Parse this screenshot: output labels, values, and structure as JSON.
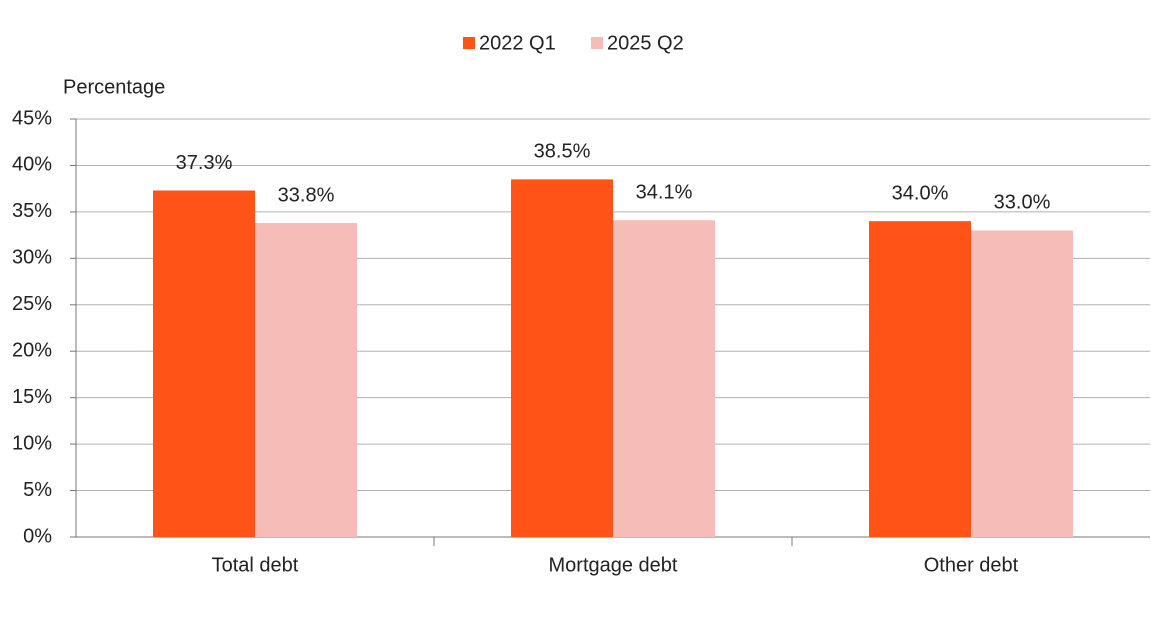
{
  "chart_data": {
    "type": "bar",
    "y_label": "Percentage",
    "categories": [
      "Total debt",
      "Mortgage debt",
      "Other debt"
    ],
    "series": [
      {
        "name": "2022 Q1",
        "color": "#ff5317",
        "values": [
          37.3,
          38.5,
          34.0
        ],
        "value_labels": [
          "37.3%",
          "38.5%",
          "34.0%"
        ]
      },
      {
        "name": "2025 Q2",
        "color": "#f6bcb8",
        "values": [
          33.8,
          34.1,
          33.0
        ],
        "value_labels": [
          "33.8%",
          "34.1%",
          "33.0%"
        ]
      }
    ],
    "ylim": [
      0,
      45
    ],
    "yticks": [
      {
        "value": 0,
        "label": "0%"
      },
      {
        "value": 5,
        "label": "5%"
      },
      {
        "value": 10,
        "label": "10%"
      },
      {
        "value": 15,
        "label": "15%"
      },
      {
        "value": 20,
        "label": "20%"
      },
      {
        "value": 25,
        "label": "25%"
      },
      {
        "value": 30,
        "label": "30%"
      },
      {
        "value": 35,
        "label": "35%"
      },
      {
        "value": 40,
        "label": "40%"
      },
      {
        "value": 45,
        "label": "45%"
      }
    ],
    "grid": true,
    "legend": "top"
  }
}
